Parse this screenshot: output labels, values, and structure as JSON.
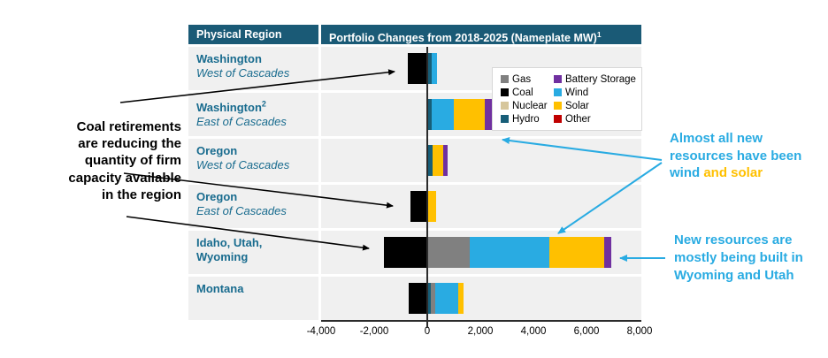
{
  "header": {
    "region_col": "Physical Region",
    "chart_col": "Portfolio Changes from 2018-2025 (Nameplate MW)",
    "footnote_marker": "1"
  },
  "regions": [
    {
      "name": "Washington",
      "sup": "",
      "sub": "West of Cascades"
    },
    {
      "name": "Washington",
      "sup": "2",
      "sub": "East of Cascades"
    },
    {
      "name": "Oregon",
      "sup": "",
      "sub": "West of Cascades"
    },
    {
      "name": "Oregon",
      "sup": "",
      "sub": "East of Cascades"
    },
    {
      "name": "Idaho, Utah, Wyoming",
      "sup": "",
      "sub": ""
    },
    {
      "name": "Montana",
      "sup": "",
      "sub": ""
    }
  ],
  "chart_data": {
    "type": "bar",
    "orientation": "horizontal",
    "stacked": true,
    "title": "Portfolio Changes from 2018-2025 (Nameplate MW)",
    "xlabel": "Nameplate MW",
    "xlim": [
      -4000,
      8000
    ],
    "grid": false,
    "legend_position": "upper-right-inside",
    "xticks": [
      {
        "value": -4000,
        "label": "-4,000"
      },
      {
        "value": -2000,
        "label": "-2,000"
      },
      {
        "value": 0,
        "label": "0"
      },
      {
        "value": 2000,
        "label": "2,000"
      },
      {
        "value": 4000,
        "label": "4,000"
      },
      {
        "value": 6000,
        "label": "6,000"
      },
      {
        "value": 8000,
        "label": "8,000"
      }
    ],
    "legend": [
      {
        "label": "Gas",
        "color": "#808080"
      },
      {
        "label": "Coal",
        "color": "#000000"
      },
      {
        "label": "Nuclear",
        "color": "#D6C69C"
      },
      {
        "label": "Hydro",
        "color": "#175E78"
      },
      {
        "label": "Battery Storage",
        "color": "#7030A0"
      },
      {
        "label": "Wind",
        "color": "#29ABE2"
      },
      {
        "label": "Solar",
        "color": "#FFC000"
      },
      {
        "label": "Other",
        "color": "#C00000"
      }
    ],
    "rows": [
      {
        "category": "Washington West of Cascades",
        "segments": [
          {
            "fuel": "Coal",
            "mw": -750
          },
          {
            "fuel": "Hydro",
            "mw": 150
          },
          {
            "fuel": "Wind",
            "mw": 200
          }
        ]
      },
      {
        "category": "Washington East of Cascades",
        "segments": [
          {
            "fuel": "Hydro",
            "mw": 150
          },
          {
            "fuel": "Wind",
            "mw": 850
          },
          {
            "fuel": "Solar",
            "mw": 1150
          },
          {
            "fuel": "Battery Storage",
            "mw": 300
          }
        ]
      },
      {
        "category": "Oregon West of Cascades",
        "segments": [
          {
            "fuel": "Hydro",
            "mw": 200
          },
          {
            "fuel": "Solar",
            "mw": 400
          },
          {
            "fuel": "Battery Storage",
            "mw": 150
          }
        ]
      },
      {
        "category": "Oregon East of Cascades",
        "segments": [
          {
            "fuel": "Coal",
            "mw": -650
          },
          {
            "fuel": "Solar",
            "mw": 330
          }
        ]
      },
      {
        "category": "Idaho, Utah, Wyoming",
        "segments": [
          {
            "fuel": "Coal",
            "mw": -1650
          },
          {
            "fuel": "Gas",
            "mw": 1600
          },
          {
            "fuel": "Wind",
            "mw": 3000
          },
          {
            "fuel": "Solar",
            "mw": 2050
          },
          {
            "fuel": "Battery Storage",
            "mw": 270
          }
        ]
      },
      {
        "category": "Montana",
        "segments": [
          {
            "fuel": "Coal",
            "mw": -700
          },
          {
            "fuel": "Hydro",
            "mw": 130
          },
          {
            "fuel": "Gas",
            "mw": 170
          },
          {
            "fuel": "Wind",
            "mw": 850
          },
          {
            "fuel": "Solar",
            "mw": 200
          }
        ]
      }
    ]
  },
  "annotations": {
    "left_lines": [
      "Coal retirements",
      "are reducing the",
      "quantity of firm",
      "capacity available",
      "in the region"
    ],
    "right1": {
      "line1": "Almost all new",
      "line2": "resources have been",
      "wind_word": "wind",
      "and_solar_words": " and solar"
    },
    "right2_lines": [
      "New resources are",
      "mostly being built in",
      "Wyoming and Utah"
    ]
  },
  "colors": {
    "header_bg": "#1A5A76",
    "region_text": "#186B8E",
    "row_bg": "#F0F0F0",
    "annotation_blue": "#29ABE2",
    "annotation_orange": "#FFC000",
    "axis": "#2B2B2B"
  }
}
